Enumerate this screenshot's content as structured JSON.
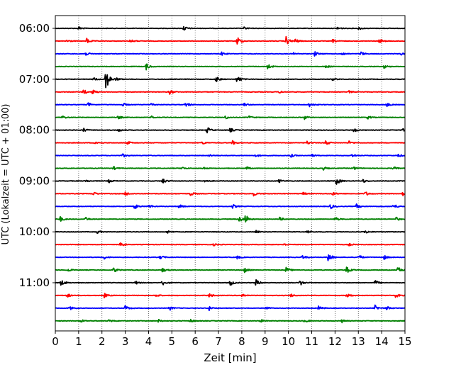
{
  "chart_data": {
    "type": "line",
    "title": "",
    "xlabel": "Zeit  [min]",
    "ylabel": "UTC (Lokalzeit = UTC + 01:00)",
    "xlim": [
      0,
      15
    ],
    "x_ticks": [
      0,
      1,
      2,
      3,
      4,
      5,
      6,
      7,
      8,
      9,
      10,
      11,
      12,
      13,
      14,
      15
    ],
    "x_tick_labels": [
      "0",
      "1",
      "2",
      "3",
      "4",
      "5",
      "6",
      "7",
      "8",
      "9",
      "10",
      "11",
      "12",
      "13",
      "14",
      "15"
    ],
    "y_ticks": [
      "06:00",
      "07:00",
      "08:00",
      "09:00",
      "10:00",
      "11:00"
    ],
    "y_reversed": true,
    "trace_interval_min": 15,
    "grid": "vertical dotted at each minute",
    "colors": [
      "#000000",
      "#ff0000",
      "#0000ff",
      "#008000"
    ],
    "series": [
      {
        "start": "06:00",
        "events": [
          [
            1.0,
            0.3
          ],
          [
            5.5,
            0.5
          ],
          [
            8.1,
            0.2
          ],
          [
            12.1,
            0.3
          ],
          [
            13.0,
            0.3
          ]
        ]
      },
      {
        "start": "06:15",
        "events": [
          [
            0.5,
            0.3
          ],
          [
            1.35,
            0.5
          ],
          [
            3.2,
            0.3
          ],
          [
            7.8,
            0.9
          ],
          [
            9.9,
            0.8
          ],
          [
            10.3,
            0.4
          ],
          [
            11.9,
            0.3
          ],
          [
            13.9,
            0.4
          ]
        ]
      },
      {
        "start": "06:30",
        "events": [
          [
            1.3,
            0.3
          ],
          [
            7.1,
            0.4
          ],
          [
            10.2,
            0.2
          ],
          [
            11.1,
            0.5
          ],
          [
            12.3,
            0.3
          ],
          [
            13.1,
            0.4
          ],
          [
            14.8,
            0.3
          ]
        ]
      },
      {
        "start": "06:45",
        "events": [
          [
            3.9,
            0.6
          ],
          [
            9.1,
            0.6
          ],
          [
            11.6,
            0.3
          ],
          [
            14.1,
            0.3
          ]
        ]
      },
      {
        "start": "07:00",
        "events": [
          [
            1.65,
            0.3
          ],
          [
            2.15,
            2.4
          ],
          [
            2.6,
            0.3
          ],
          [
            6.9,
            0.5
          ],
          [
            7.8,
            0.7
          ],
          [
            11.9,
            0.2
          ]
        ]
      },
      {
        "start": "07:15",
        "events": [
          [
            1.2,
            0.5
          ],
          [
            1.6,
            0.4
          ],
          [
            4.9,
            0.5
          ],
          [
            9.6,
            0.2
          ],
          [
            12.6,
            0.2
          ]
        ]
      },
      {
        "start": "07:30",
        "events": [
          [
            1.4,
            0.4
          ],
          [
            2.9,
            0.3
          ],
          [
            4.1,
            0.3
          ],
          [
            5.6,
            0.5
          ],
          [
            8.1,
            0.3
          ],
          [
            10.9,
            0.4
          ],
          [
            14.2,
            0.4
          ]
        ]
      },
      {
        "start": "07:45",
        "events": [
          [
            0.3,
            0.3
          ],
          [
            2.7,
            0.3
          ],
          [
            4.1,
            0.3
          ],
          [
            7.3,
            0.3
          ],
          [
            8.3,
            0.3
          ],
          [
            10.7,
            0.4
          ],
          [
            13.4,
            0.3
          ]
        ]
      },
      {
        "start": "08:00",
        "events": [
          [
            1.2,
            0.4
          ],
          [
            2.7,
            0.3
          ],
          [
            6.5,
            0.6
          ],
          [
            7.5,
            0.4
          ],
          [
            12.8,
            0.4
          ],
          [
            14.9,
            0.5
          ]
        ]
      },
      {
        "start": "08:15",
        "events": [
          [
            1.7,
            0.4
          ],
          [
            3.1,
            0.3
          ],
          [
            6.3,
            0.3
          ],
          [
            7.6,
            0.4
          ],
          [
            10.8,
            0.3
          ],
          [
            11.6,
            0.5
          ],
          [
            12.6,
            0.3
          ]
        ]
      },
      {
        "start": "08:30",
        "events": [
          [
            2.9,
            0.3
          ],
          [
            6.6,
            0.2
          ],
          [
            8.6,
            0.3
          ],
          [
            10.1,
            0.3
          ],
          [
            11.0,
            0.3
          ],
          [
            12.7,
            0.3
          ],
          [
            14.7,
            0.3
          ]
        ]
      },
      {
        "start": "08:45",
        "events": [
          [
            2.5,
            0.3
          ],
          [
            5.4,
            0.3
          ],
          [
            6.3,
            0.3
          ],
          [
            8.2,
            0.3
          ],
          [
            11.5,
            0.3
          ],
          [
            12.8,
            0.3
          ],
          [
            14.5,
            0.3
          ]
        ]
      },
      {
        "start": "09:00",
        "events": [
          [
            1.3,
            0.2
          ],
          [
            2.3,
            0.3
          ],
          [
            4.6,
            0.5
          ],
          [
            6.4,
            0.3
          ],
          [
            9.6,
            0.3
          ],
          [
            12.05,
            0.8
          ],
          [
            13.2,
            0.3
          ]
        ]
      },
      {
        "start": "09:15",
        "events": [
          [
            1.6,
            0.4
          ],
          [
            3.0,
            0.4
          ],
          [
            5.8,
            0.4
          ],
          [
            8.5,
            0.4
          ],
          [
            10.6,
            0.3
          ],
          [
            11.9,
            0.3
          ],
          [
            13.3,
            0.4
          ],
          [
            14.9,
            0.4
          ]
        ]
      },
      {
        "start": "09:30",
        "events": [
          [
            3.4,
            0.5
          ],
          [
            4.0,
            0.4
          ],
          [
            5.3,
            0.4
          ],
          [
            7.6,
            0.4
          ],
          [
            11.8,
            0.5
          ],
          [
            12.9,
            0.5
          ],
          [
            14.5,
            0.5
          ]
        ]
      },
      {
        "start": "09:45",
        "events": [
          [
            0.2,
            0.5
          ],
          [
            1.3,
            0.3
          ],
          [
            7.9,
            0.6
          ],
          [
            8.15,
            0.9
          ],
          [
            9.6,
            0.4
          ],
          [
            12.0,
            0.4
          ],
          [
            14.6,
            0.4
          ]
        ]
      },
      {
        "start": "10:00",
        "events": [
          [
            1.8,
            0.3
          ],
          [
            4.8,
            0.3
          ],
          [
            8.6,
            0.3
          ],
          [
            10.8,
            0.3
          ],
          [
            13.3,
            0.3
          ]
        ]
      },
      {
        "start": "10:15",
        "events": [
          [
            2.8,
            0.5
          ],
          [
            6.8,
            0.2
          ],
          [
            9.8,
            0.2
          ],
          [
            12.6,
            0.2
          ]
        ]
      },
      {
        "start": "10:30",
        "events": [
          [
            2.1,
            0.3
          ],
          [
            4.5,
            0.4
          ],
          [
            7.8,
            0.3
          ],
          [
            10.6,
            0.4
          ],
          [
            11.7,
            1.0
          ],
          [
            13.0,
            0.5
          ],
          [
            14.1,
            0.4
          ]
        ]
      },
      {
        "start": "10:45",
        "events": [
          [
            0.5,
            0.4
          ],
          [
            2.5,
            0.5
          ],
          [
            4.6,
            0.4
          ],
          [
            8.1,
            0.5
          ],
          [
            9.9,
            0.5
          ],
          [
            12.5,
            0.6
          ],
          [
            14.7,
            0.6
          ]
        ]
      },
      {
        "start": "11:00",
        "events": [
          [
            0.25,
            0.6
          ],
          [
            3.4,
            0.4
          ],
          [
            4.6,
            0.5
          ],
          [
            7.5,
            0.6
          ],
          [
            8.6,
            0.6
          ],
          [
            10.5,
            0.5
          ],
          [
            13.7,
            0.5
          ]
        ]
      },
      {
        "start": "11:15",
        "events": [
          [
            0.5,
            0.4
          ],
          [
            2.1,
            0.4
          ],
          [
            4.3,
            0.3
          ],
          [
            6.6,
            0.4
          ],
          [
            8.0,
            0.4
          ],
          [
            10.1,
            0.3
          ],
          [
            12.5,
            0.5
          ],
          [
            14.6,
            0.4
          ]
        ]
      },
      {
        "start": "11:30",
        "events": [
          [
            0.6,
            0.4
          ],
          [
            3.0,
            0.5
          ],
          [
            4.9,
            0.4
          ],
          [
            6.6,
            0.4
          ],
          [
            9.0,
            0.4
          ],
          [
            11.3,
            0.4
          ],
          [
            13.7,
            0.6
          ],
          [
            14.2,
            0.4
          ]
        ]
      },
      {
        "start": "11:45",
        "events": [
          [
            1.1,
            0.3
          ],
          [
            2.3,
            0.3
          ],
          [
            4.4,
            0.3
          ],
          [
            5.8,
            0.3
          ],
          [
            8.8,
            0.3
          ],
          [
            10.7,
            0.3
          ],
          [
            12.3,
            0.3
          ]
        ]
      }
    ]
  }
}
